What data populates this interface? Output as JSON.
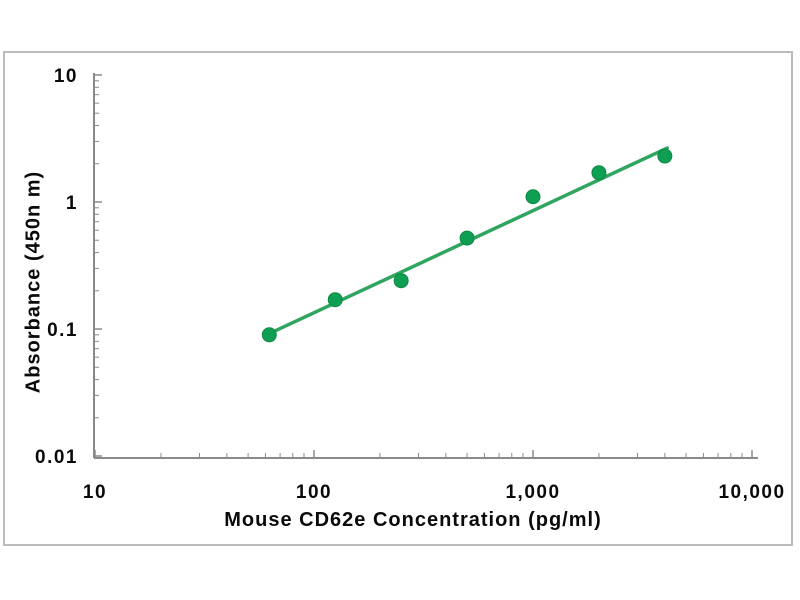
{
  "chart_data": {
    "type": "scatter",
    "title": "",
    "xlabel": "Mouse CD62e Concentration (pg/ml)",
    "ylabel": "Absorbance (450n m)",
    "x_scale": "log",
    "y_scale": "log",
    "xlim": [
      10,
      10000
    ],
    "ylim": [
      0.01,
      10
    ],
    "grid": false,
    "legend": false,
    "x_ticks": [
      {
        "value": 10,
        "label": "10"
      },
      {
        "value": 100,
        "label": "100"
      },
      {
        "value": 1000,
        "label": "1,000"
      },
      {
        "value": 10000,
        "label": "10,000"
      }
    ],
    "y_ticks": [
      {
        "value": 10,
        "label": "10"
      },
      {
        "value": 1,
        "label": "1"
      },
      {
        "value": 0.1,
        "label": "0.1"
      },
      {
        "value": 0.01,
        "label": "0.01"
      }
    ],
    "minor_tick_decades_x": [
      10,
      100,
      1000
    ],
    "minor_tick_decades_y": [
      0.01,
      0.1,
      1
    ],
    "series": [
      {
        "name": "standard-curve-points",
        "marker": "circle",
        "x": [
          62.5,
          125,
          250,
          500,
          1000,
          2000,
          4000
        ],
        "y": [
          0.09,
          0.17,
          0.24,
          0.52,
          1.1,
          1.7,
          2.3
        ]
      }
    ],
    "trendline": {
      "name": "power-fit-line",
      "x": [
        62.5,
        4100
      ],
      "y": [
        0.092,
        2.66
      ]
    },
    "colors": {
      "marker": "#0f9f52",
      "marker_edge": "#0c8a45",
      "trend_line": "#30a560",
      "axis": "#8a8a8a",
      "tick_label": "#0a0a0a",
      "frame_border": "#bcbcbc",
      "background": "#ffffff"
    }
  }
}
